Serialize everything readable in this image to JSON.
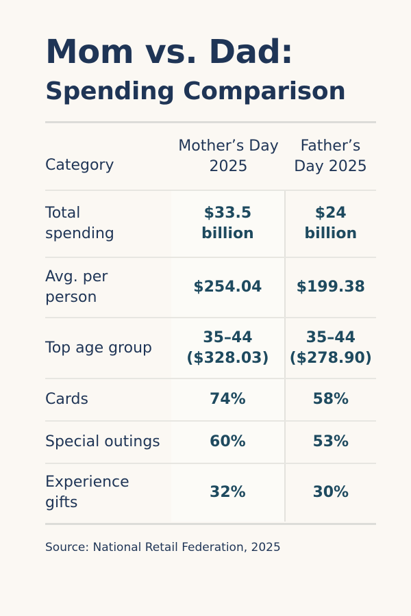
{
  "title": {
    "line1": "Mom vs. Dad:",
    "line2": "Spending Comparison"
  },
  "table": {
    "headers": [
      "Category",
      "Mother’s Day\n2025",
      "Father’s\nDay 2025"
    ],
    "rows": [
      {
        "category": "Total\nspending",
        "mothers_day": "$33.5\nbillion",
        "fathers_day": "$24\nbillion"
      },
      {
        "category": "Avg. per\nperson",
        "mothers_day": "$254.04",
        "fathers_day": "$199.38"
      },
      {
        "category": "Top age group",
        "mothers_day": "35–44\n($328.03)",
        "fathers_day": "35–44\n($278.90)"
      },
      {
        "category": "Cards",
        "mothers_day": "74%",
        "fathers_day": "58%"
      },
      {
        "category": "Special outings",
        "mothers_day": "60%",
        "fathers_day": "53%"
      },
      {
        "category": "Experience\ngifts",
        "mothers_day": "32%",
        "fathers_day": "30%"
      }
    ]
  },
  "source": "Source: National Retail Federation, 2025",
  "colors": {
    "background": "#fbf8f3",
    "text": "#1f3556",
    "value_text": "#1e4a5f"
  }
}
